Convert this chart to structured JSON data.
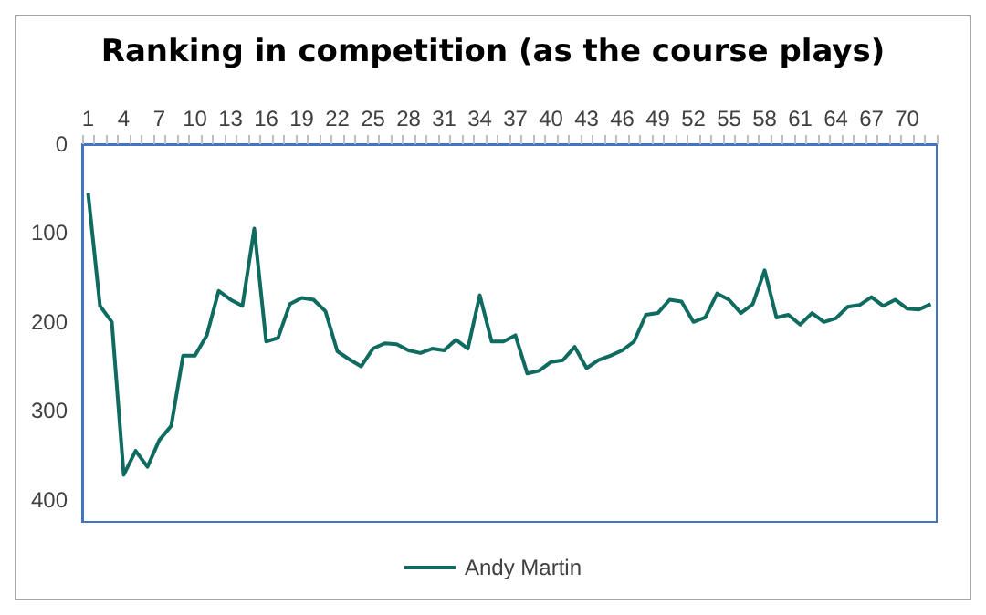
{
  "chart_data": {
    "type": "line",
    "title": "Ranking in competition (as the course plays)",
    "categories": [
      "1",
      null,
      null,
      "4",
      null,
      null,
      "7",
      null,
      null,
      "10",
      null,
      null,
      "13",
      null,
      null,
      "16",
      null,
      null,
      "19",
      null,
      null,
      "22",
      null,
      null,
      "25",
      null,
      null,
      "28",
      null,
      null,
      "31",
      null,
      null,
      "34",
      null,
      null,
      "37",
      null,
      null,
      "40",
      null,
      null,
      "43",
      null,
      null,
      "46",
      null,
      null,
      "49",
      null,
      null,
      "52",
      null,
      null,
      "55",
      null,
      null,
      "58",
      null,
      null,
      "61",
      null,
      null,
      "64",
      null,
      null,
      "67",
      null,
      null,
      "70",
      null,
      null
    ],
    "series": [
      {
        "name": "Andy Martin",
        "color": "#0f6b5f",
        "values": [
          55,
          182,
          200,
          372,
          345,
          363,
          333,
          317,
          238,
          238,
          215,
          165,
          175,
          182,
          95,
          222,
          218,
          180,
          173,
          175,
          188,
          233,
          242,
          250,
          230,
          224,
          225,
          232,
          235,
          230,
          232,
          220,
          230,
          170,
          222,
          222,
          215,
          258,
          255,
          245,
          243,
          228,
          252,
          243,
          238,
          232,
          222,
          192,
          190,
          175,
          177,
          200,
          195,
          168,
          175,
          190,
          180,
          142,
          195,
          192,
          203,
          190,
          200,
          196,
          183,
          181,
          172,
          182,
          175,
          185,
          186,
          180
        ]
      }
    ],
    "ylim": [
      425,
      0
    ],
    "yticks": [
      0,
      100,
      200,
      300,
      400
    ],
    "grid": false,
    "legend": "bottom",
    "marker": "none",
    "line_style": "solid"
  }
}
